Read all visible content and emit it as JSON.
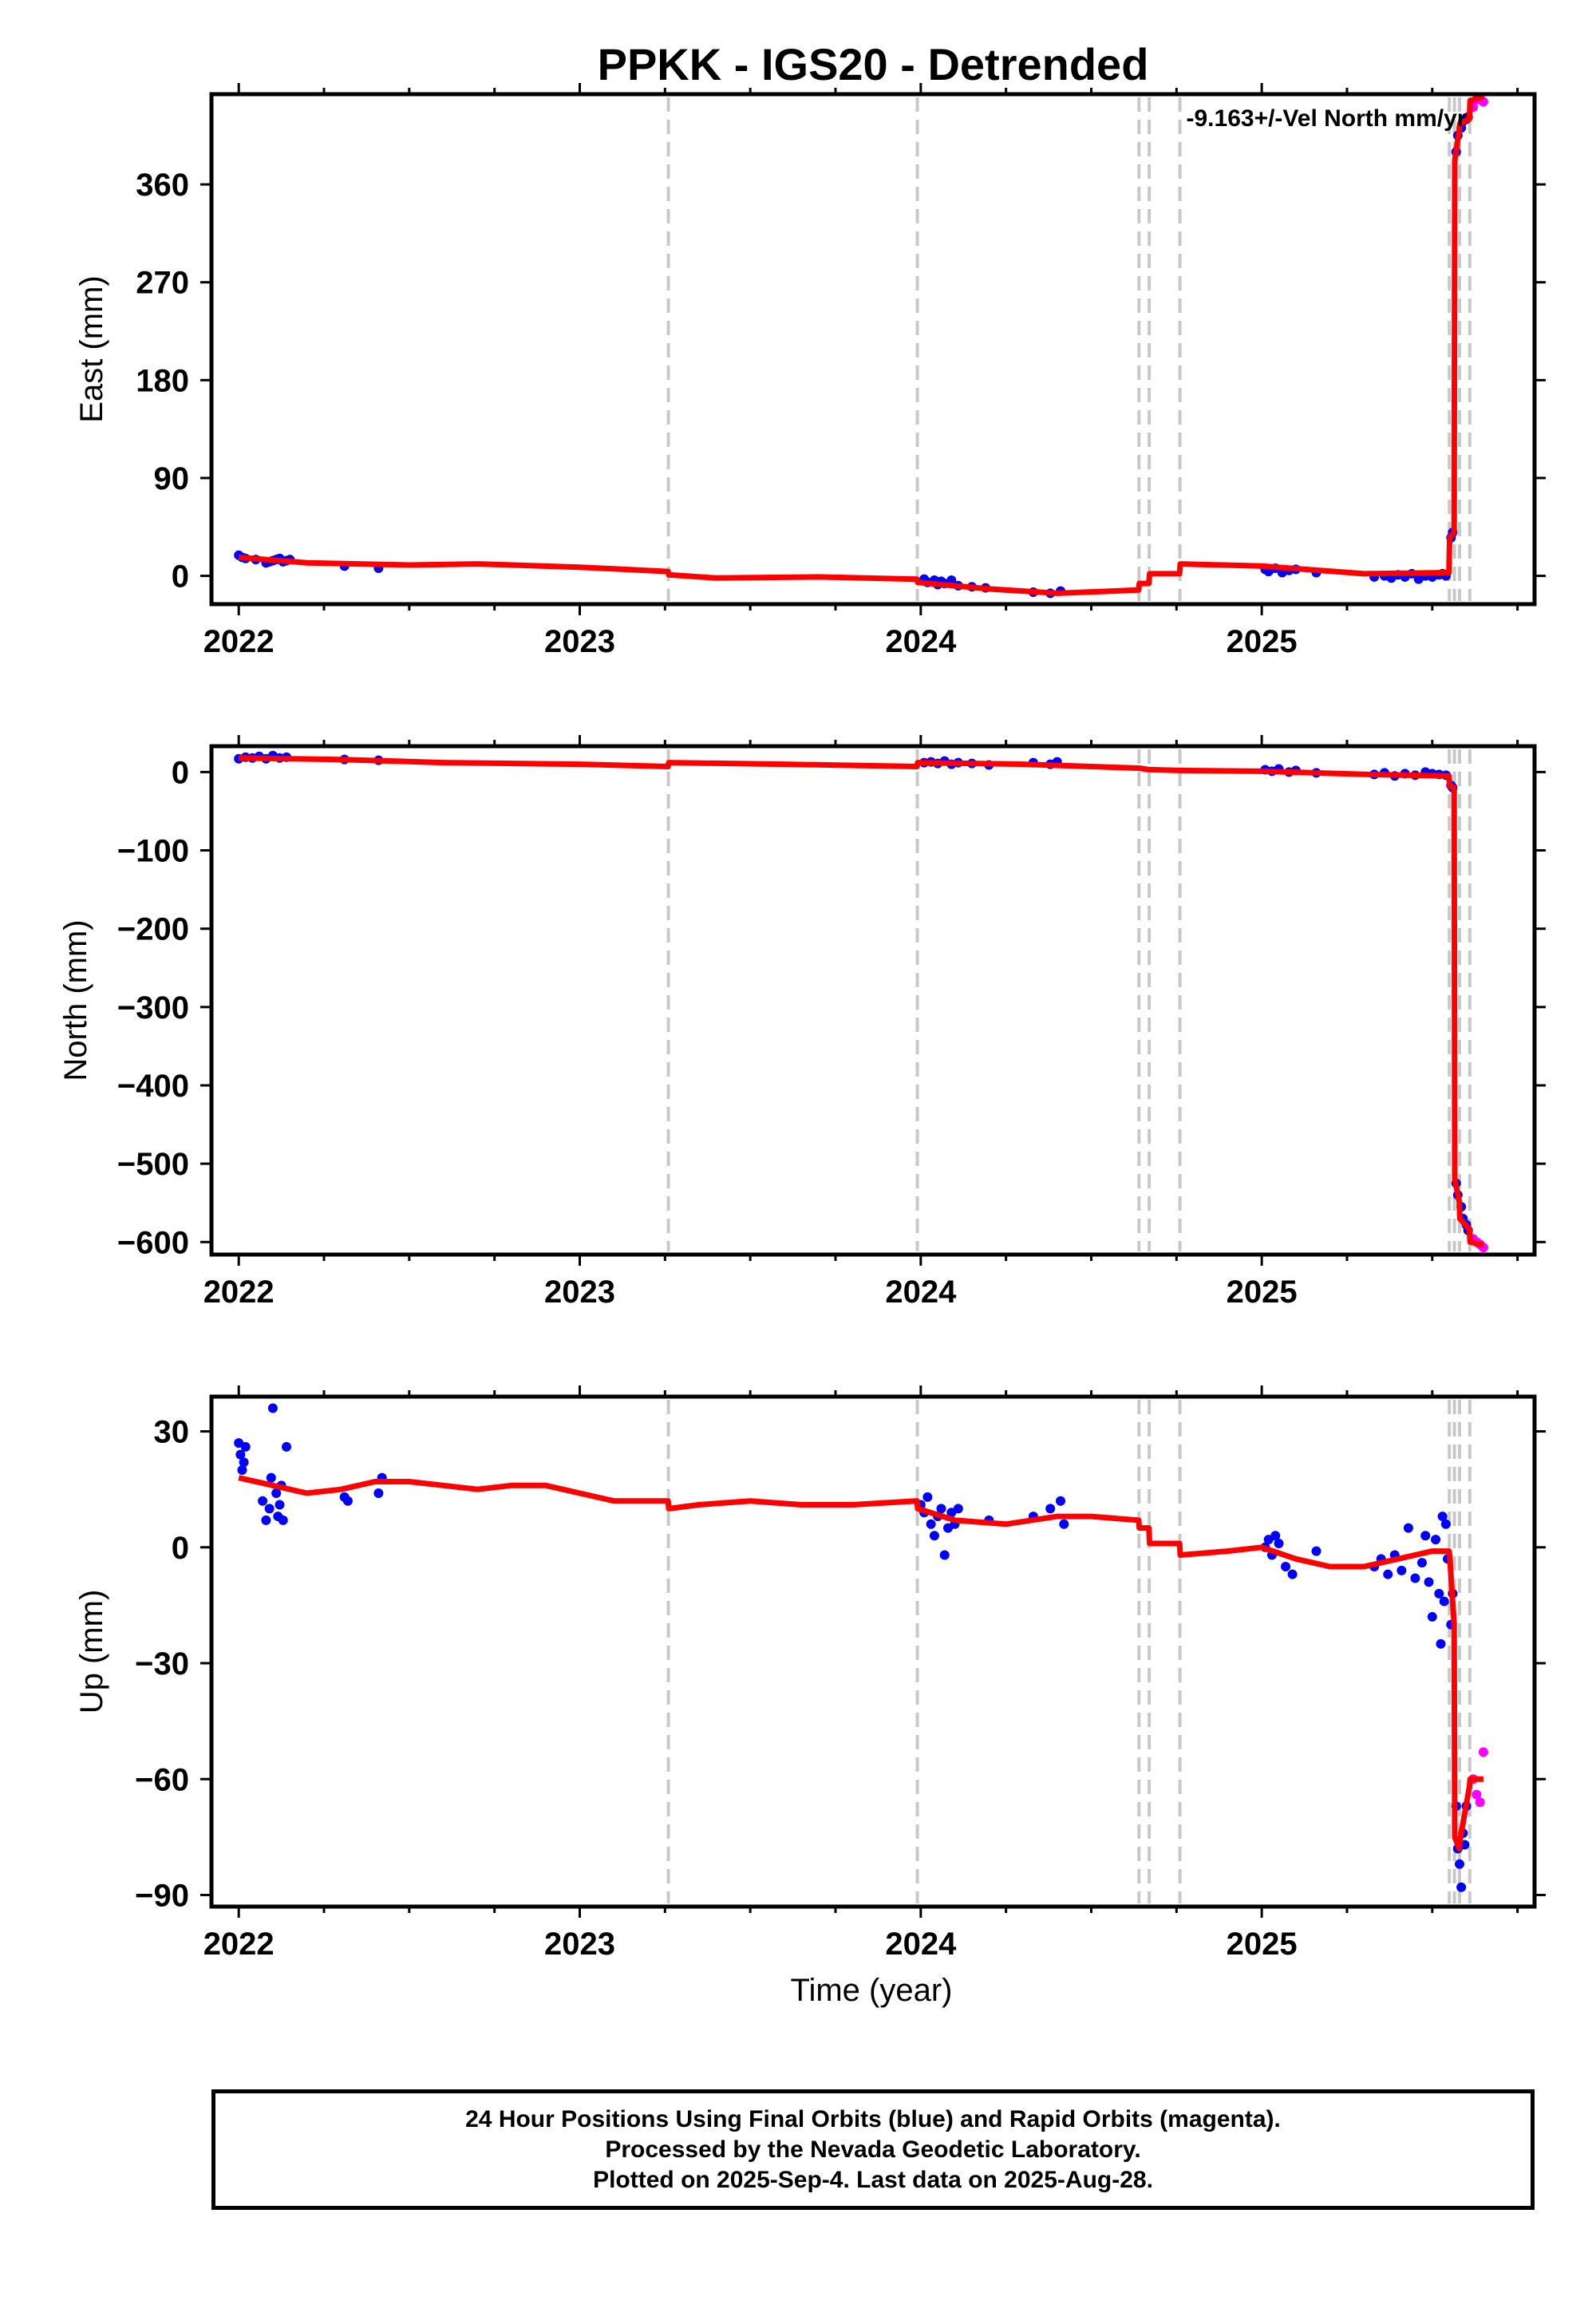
{
  "title": "PPKK - IGS20 - Detrended",
  "annotation": "-9.163+/-Vel North mm/yr",
  "colors": {
    "final": "#0000ff",
    "rapid": "#ff00ff",
    "model": "#ff0000",
    "breaks": "#c8c8c8"
  },
  "footer": {
    "line1": "24 Hour Positions Using Final Orbits (blue) and Rapid Orbits (magenta).",
    "line2": "Processed by the Nevada Geodetic Laboratory.",
    "line3": "Plotted on 2025-Sep-4. Last data on 2025-Aug-28."
  },
  "chart_data": [
    {
      "type": "scatter",
      "name": "east",
      "ylabel": "East (mm)",
      "xlabel": "",
      "xlim": [
        2021.92,
        2025.8
      ],
      "ylim": [
        -26,
        443
      ],
      "xticks": [
        2022,
        2023,
        2024,
        2025
      ],
      "yticks": [
        0,
        90,
        180,
        270,
        360
      ],
      "breaks": [
        2023.26,
        2023.99,
        2024.64,
        2024.67,
        2024.76,
        2025.55,
        2025.565,
        2025.58,
        2025.61
      ],
      "model": {
        "x": [
          2022.0,
          2022.2,
          2022.5,
          2022.7,
          2023.0,
          2023.259,
          2023.261,
          2023.4,
          2023.7,
          2023.989,
          2023.991,
          2024.2,
          2024.4,
          2024.639,
          2024.641,
          2024.669,
          2024.671,
          2024.759,
          2024.761,
          2025.0,
          2025.3,
          2025.549,
          2025.551,
          2025.564,
          2025.566,
          2025.579,
          2025.581,
          2025.609,
          2025.611,
          2025.65
        ],
        "y": [
          17,
          12,
          10,
          11,
          8,
          4,
          1,
          -2,
          -1,
          -3,
          -6,
          -12,
          -16,
          -13,
          -7,
          -7,
          2,
          2,
          11,
          9,
          2,
          3,
          35,
          40,
          382,
          410,
          416,
          420,
          437,
          441
        ]
      },
      "final": {
        "x": [
          2022.0,
          2022.01,
          2022.02,
          2022.05,
          2022.08,
          2022.09,
          2022.1,
          2022.11,
          2022.12,
          2022.13,
          2022.14,
          2022.15,
          2022.31,
          2022.41,
          2024.01,
          2024.02,
          2024.04,
          2024.05,
          2024.06,
          2024.07,
          2024.09,
          2024.11,
          2024.15,
          2024.19,
          2024.33,
          2024.38,
          2024.41,
          2025.01,
          2025.02,
          2025.04,
          2025.06,
          2025.08,
          2025.1,
          2025.16,
          2025.33,
          2025.36,
          2025.38,
          2025.4,
          2025.42,
          2025.44,
          2025.46,
          2025.48,
          2025.5,
          2025.52,
          2025.53,
          2025.54,
          2025.555,
          2025.56,
          2025.57,
          2025.575,
          2025.585,
          2025.59,
          2025.6,
          2025.605
        ],
        "y": [
          19,
          17,
          16,
          15,
          12,
          13,
          14,
          15,
          16,
          13,
          14,
          15,
          9,
          7,
          -3,
          -6,
          -4,
          -8,
          -5,
          -7,
          -4,
          -9,
          -10,
          -11,
          -15,
          -16,
          -14,
          6,
          4,
          7,
          3,
          5,
          6,
          3,
          -1,
          0,
          -2,
          1,
          -1,
          2,
          -3,
          0,
          -1,
          1,
          2,
          0,
          35,
          40,
          390,
          405,
          412,
          418,
          420,
          422
        ]
      },
      "rapid": {
        "x": [
          2025.62,
          2025.63,
          2025.64,
          2025.65
        ],
        "y": [
          431,
          438,
          440,
          436
        ]
      }
    },
    {
      "type": "scatter",
      "name": "north",
      "ylabel": "North (mm)",
      "xlabel": "",
      "xlim": [
        2021.92,
        2025.8
      ],
      "ylim": [
        -616,
        33
      ],
      "xticks": [
        2022,
        2023,
        2024,
        2025
      ],
      "yticks": [
        0,
        -100,
        -200,
        -300,
        -400,
        -500,
        -600
      ],
      "breaks": [
        2023.26,
        2023.99,
        2024.64,
        2024.67,
        2024.76,
        2025.55,
        2025.565,
        2025.58,
        2025.61
      ],
      "model": {
        "x": [
          2022.0,
          2022.3,
          2022.6,
          2023.0,
          2023.259,
          2023.261,
          2023.6,
          2023.989,
          2023.991,
          2024.3,
          2024.639,
          2024.641,
          2024.669,
          2024.671,
          2024.759,
          2024.761,
          2025.0,
          2025.3,
          2025.549,
          2025.551,
          2025.564,
          2025.566,
          2025.579,
          2025.581,
          2025.609,
          2025.611,
          2025.65
        ],
        "y": [
          18,
          16,
          12,
          10,
          7,
          12,
          10,
          7,
          12,
          10,
          5,
          5,
          3,
          3,
          2,
          2,
          1,
          -3,
          -5,
          -18,
          -20,
          -520,
          -548,
          -570,
          -584,
          -600,
          -604
        ]
      },
      "final": {
        "x": [
          2022.0,
          2022.02,
          2022.04,
          2022.06,
          2022.08,
          2022.1,
          2022.12,
          2022.14,
          2022.31,
          2022.41,
          2024.01,
          2024.03,
          2024.05,
          2024.07,
          2024.09,
          2024.11,
          2024.15,
          2024.2,
          2024.33,
          2024.38,
          2024.4,
          2025.01,
          2025.03,
          2025.05,
          2025.08,
          2025.1,
          2025.16,
          2025.33,
          2025.36,
          2025.39,
          2025.42,
          2025.45,
          2025.48,
          2025.5,
          2025.52,
          2025.54,
          2025.555,
          2025.56,
          2025.57,
          2025.575,
          2025.585,
          2025.59,
          2025.6,
          2025.605
        ],
        "y": [
          17,
          19,
          18,
          20,
          17,
          21,
          18,
          19,
          16,
          15,
          12,
          13,
          11,
          14,
          10,
          12,
          11,
          9,
          12,
          10,
          13,
          3,
          1,
          4,
          0,
          2,
          -1,
          -3,
          -1,
          -5,
          -2,
          -4,
          0,
          -2,
          -3,
          -4,
          -17,
          -20,
          -525,
          -540,
          -555,
          -570,
          -578,
          -585
        ]
      },
      "rapid": {
        "x": [
          2025.62,
          2025.63,
          2025.64,
          2025.65
        ],
        "y": [
          -596,
          -600,
          -603,
          -607
        ]
      }
    },
    {
      "type": "scatter",
      "name": "up",
      "ylabel": "Up (mm)",
      "xlabel": "Time (year)",
      "xlim": [
        2021.92,
        2025.8
      ],
      "ylim": [
        -93,
        39
      ],
      "xticks": [
        2022,
        2023,
        2024,
        2025
      ],
      "yticks": [
        30,
        0,
        -30,
        -60,
        -90
      ],
      "breaks": [
        2023.26,
        2023.99,
        2024.64,
        2024.67,
        2024.76,
        2025.55,
        2025.565,
        2025.58,
        2025.61
      ],
      "model": {
        "x": [
          2022.0,
          2022.1,
          2022.2,
          2022.3,
          2022.4,
          2022.5,
          2022.6,
          2022.7,
          2022.8,
          2022.9,
          2023.0,
          2023.1,
          2023.2,
          2023.259,
          2023.261,
          2023.35,
          2023.5,
          2023.65,
          2023.8,
          2023.989,
          2023.991,
          2024.1,
          2024.25,
          2024.4,
          2024.5,
          2024.639,
          2024.641,
          2024.669,
          2024.671,
          2024.759,
          2024.761,
          2024.9,
          2025.0,
          2025.1,
          2025.2,
          2025.3,
          2025.4,
          2025.5,
          2025.549,
          2025.551,
          2025.564,
          2025.566,
          2025.579,
          2025.581,
          2025.609,
          2025.611,
          2025.65
        ],
        "y": [
          18,
          16,
          14,
          15,
          17,
          17,
          16,
          15,
          16,
          16,
          14,
          12,
          12,
          12,
          10,
          11,
          12,
          11,
          11,
          12,
          10,
          7,
          6,
          8,
          8,
          7,
          5,
          5,
          1,
          1,
          -2,
          -1,
          0,
          -3,
          -5,
          -5,
          -3,
          -1,
          -1,
          -2,
          -20,
          -75,
          -78,
          -76,
          -62,
          -60,
          -60
        ]
      },
      "final": {
        "x": [
          2022.0,
          2022.005,
          2022.01,
          2022.015,
          2022.02,
          2022.07,
          2022.08,
          2022.09,
          2022.095,
          2022.1,
          2022.11,
          2022.115,
          2022.12,
          2022.125,
          2022.13,
          2022.14,
          2022.31,
          2022.32,
          2022.41,
          2022.42,
          2024.0,
          2024.01,
          2024.02,
          2024.03,
          2024.04,
          2024.05,
          2024.06,
          2024.07,
          2024.08,
          2024.09,
          2024.1,
          2024.11,
          2024.2,
          2024.33,
          2024.38,
          2024.41,
          2024.42,
          2025.01,
          2025.02,
          2025.03,
          2025.04,
          2025.05,
          2025.07,
          2025.09,
          2025.16,
          2025.33,
          2025.35,
          2025.37,
          2025.39,
          2025.41,
          2025.43,
          2025.45,
          2025.47,
          2025.48,
          2025.49,
          2025.5,
          2025.51,
          2025.52,
          2025.525,
          2025.53,
          2025.535,
          2025.54,
          2025.545,
          2025.555,
          2025.56,
          2025.57,
          2025.575,
          2025.58,
          2025.585,
          2025.59,
          2025.595,
          2025.6
        ],
        "y": [
          27,
          24,
          20,
          22,
          26,
          12,
          7,
          10,
          18,
          36,
          14,
          8,
          11,
          16,
          7,
          26,
          13,
          12,
          14,
          18,
          11,
          9,
          13,
          6,
          3,
          8,
          10,
          -2,
          5,
          9,
          6,
          10,
          7,
          8,
          10,
          12,
          6,
          0,
          2,
          -2,
          3,
          1,
          -5,
          -7,
          -1,
          -5,
          -3,
          -7,
          -2,
          -6,
          5,
          -8,
          -4,
          3,
          -9,
          -18,
          2,
          -12,
          -25,
          8,
          -14,
          6,
          -3,
          -20,
          -12,
          -67,
          -78,
          -82,
          -88,
          -74,
          -77,
          -67
        ]
      },
      "rapid": {
        "x": [
          2025.62,
          2025.63,
          2025.64,
          2025.65
        ],
        "y": [
          -60,
          -64,
          -66,
          -53
        ]
      }
    }
  ]
}
